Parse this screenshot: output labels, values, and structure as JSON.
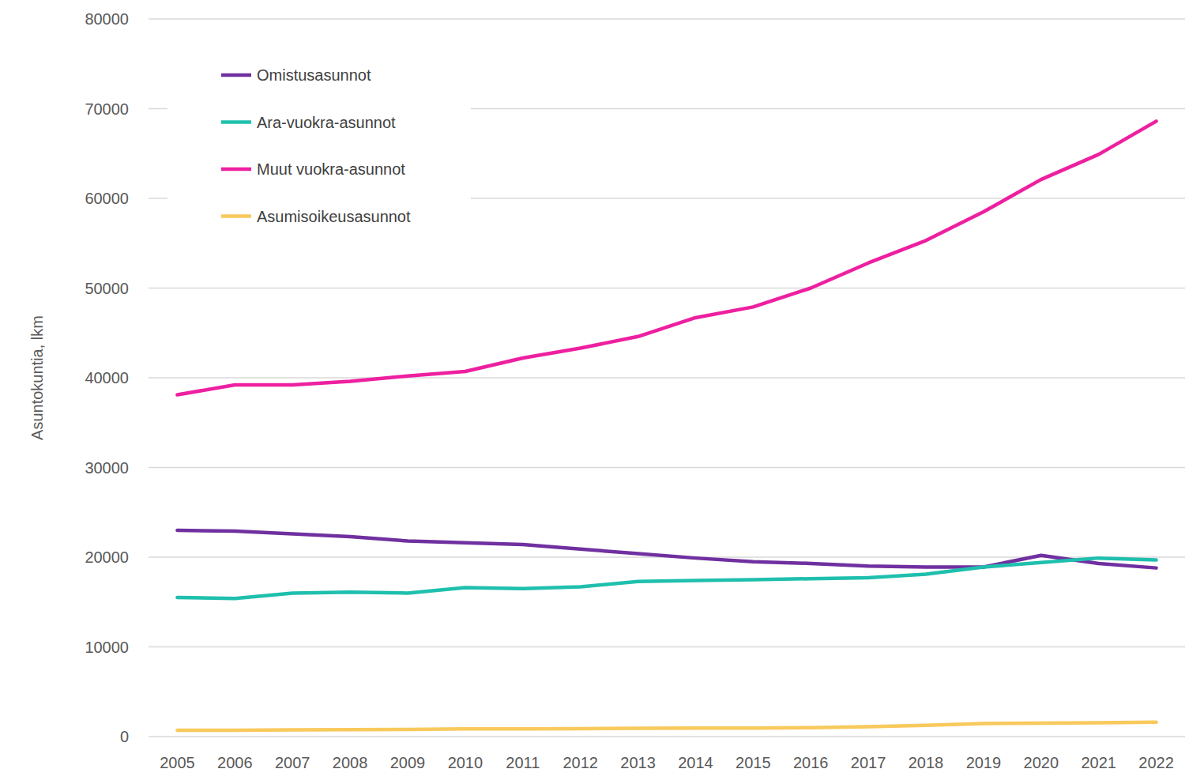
{
  "chart_data": {
    "type": "line",
    "y_label": "Asuntokuntia, lkm",
    "categories": [
      "2005",
      "2006",
      "2007",
      "2008",
      "2009",
      "2010",
      "2011",
      "2012",
      "2013",
      "2014",
      "2015",
      "2016",
      "2017",
      "2018",
      "2019",
      "2020",
      "2021",
      "2022"
    ],
    "series": [
      {
        "name": "Omistusasunnot",
        "color": "#7030a0",
        "values": [
          23000,
          22900,
          22600,
          22300,
          21800,
          21600,
          21400,
          20900,
          20400,
          19900,
          19500,
          19300,
          19000,
          18900,
          18900,
          20200,
          19300,
          18800
        ]
      },
      {
        "name": "Ara-vuokra-asunnot",
        "color": "#1fbfae",
        "values": [
          15500,
          15400,
          16000,
          16100,
          16000,
          16600,
          16500,
          16700,
          17300,
          17400,
          17500,
          17600,
          17700,
          18100,
          18900,
          19400,
          19900,
          19700
        ]
      },
      {
        "name": "Muut vuokra-asunnot",
        "color": "#ee1fa0",
        "values": [
          38100,
          39200,
          39200,
          39600,
          40200,
          40700,
          42200,
          43300,
          44600,
          46700,
          47900,
          50000,
          52800,
          55300,
          58500,
          62100,
          64900,
          68600
        ]
      },
      {
        "name": "Asumisoikeusasunnot",
        "color": "#f8c95c",
        "values": [
          700,
          700,
          750,
          780,
          800,
          850,
          870,
          880,
          920,
          940,
          950,
          1000,
          1100,
          1250,
          1450,
          1500,
          1550,
          1600
        ]
      }
    ],
    "ylim": [
      0,
      80000
    ],
    "yticks": [
      0,
      10000,
      20000,
      30000,
      40000,
      50000,
      60000,
      70000,
      80000
    ],
    "grid": true,
    "legend": "top-left"
  }
}
